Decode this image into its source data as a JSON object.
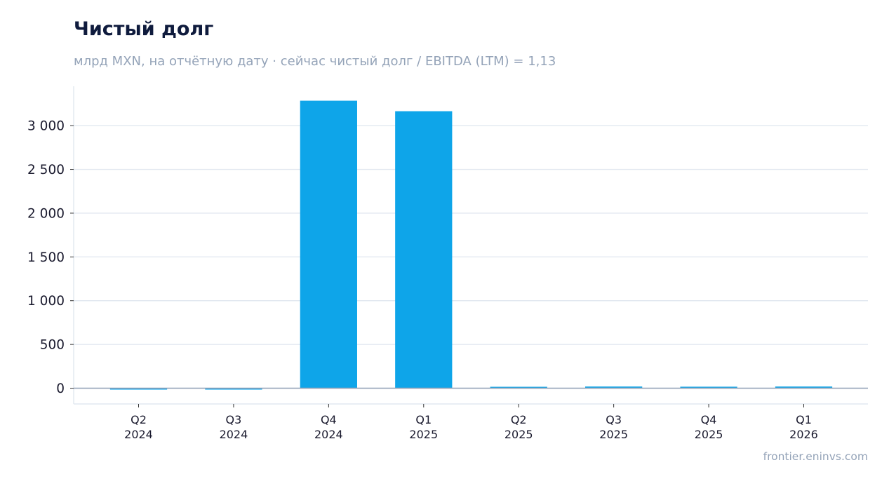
{
  "header": {
    "title": "Чистый долг",
    "subtitle": "млрд MXN, на отчётную дату · сейчас чистый долг / EBITDA (LTM) = 1,13"
  },
  "footer": {
    "source": "frontier.eninvs.com"
  },
  "colors": {
    "bar": "#0ea5e9",
    "grid": "#e2e8f0",
    "zero_line": "#94a3b8",
    "axis_text": "#1a1a2e",
    "title": "#0f1b3d",
    "subtitle": "#94a3b8"
  },
  "chart_data": {
    "type": "bar",
    "title": "Чистый долг",
    "categories": [
      [
        "Q2",
        "2024"
      ],
      [
        "Q3",
        "2024"
      ],
      [
        "Q4",
        "2024"
      ],
      [
        "Q1",
        "2025"
      ],
      [
        "Q2",
        "2025"
      ],
      [
        "Q3",
        "2025"
      ],
      [
        "Q4",
        "2025"
      ],
      [
        "Q1",
        "2026"
      ]
    ],
    "values": [
      -3,
      -14,
      3285,
      3165,
      10,
      19,
      17,
      19
    ],
    "yticks": [
      0,
      500,
      1000,
      1500,
      2000,
      2500,
      3000
    ],
    "ytick_labels": [
      "0",
      "500",
      "1 000",
      "1 500",
      "2 000",
      "2 500",
      "3 000"
    ],
    "ylim": [
      -180,
      3450
    ],
    "grid": true,
    "xlabel": "",
    "ylabel": ""
  }
}
